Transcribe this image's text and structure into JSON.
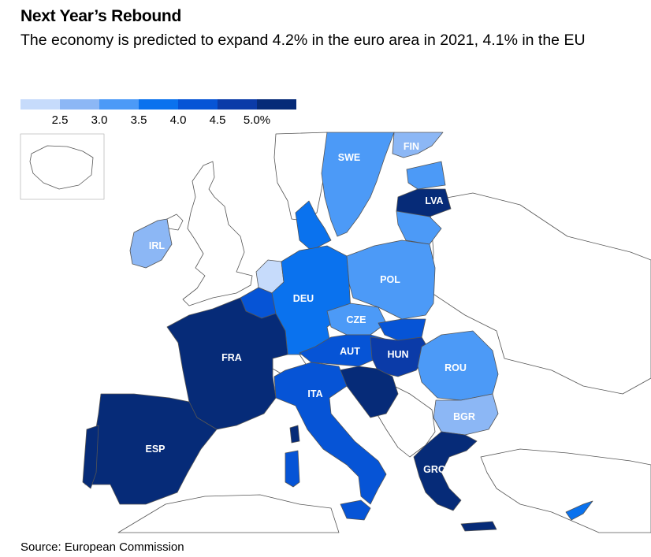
{
  "title": "Next Year’s Rebound",
  "subtitle": "The economy is predicted to expand 4.2% in the euro area in 2021, 4.1% in the EU",
  "legend": {
    "colors": [
      "#c6dbfb",
      "#8cb7f5",
      "#4c9af7",
      "#0a72ee",
      "#0654d6",
      "#0b3ba8",
      "#062b78"
    ],
    "ticks": [
      "2.5",
      "3.0",
      "3.5",
      "4.0",
      "4.5",
      "5.0%"
    ]
  },
  "countries": {
    "swe": "SWE",
    "fin": "FIN",
    "lva": "LVA",
    "irl": "IRL",
    "pol": "POL",
    "deu": "DEU",
    "cze": "CZE",
    "fra": "FRA",
    "aut": "AUT",
    "hun": "HUN",
    "rou": "ROU",
    "ita": "ITA",
    "bgr": "BGR",
    "esp": "ESP",
    "grc": "GRC"
  },
  "source": "Source: European Commission"
}
